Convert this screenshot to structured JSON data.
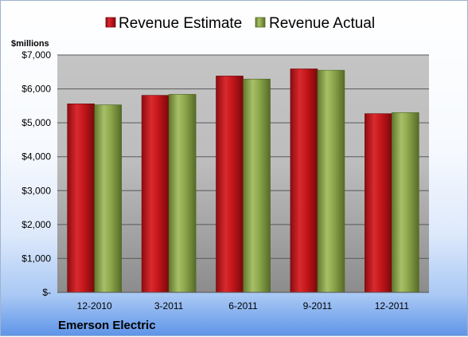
{
  "chart_data": {
    "type": "bar",
    "ylabel": "$millions",
    "categories": [
      "12-2010",
      "3-2011",
      "6-2011",
      "9-2011",
      "12-2011"
    ],
    "series": [
      {
        "name": "Revenue Estimate",
        "color": "#c0161b",
        "values": [
          5560,
          5810,
          6380,
          6590,
          5270
        ]
      },
      {
        "name": "Revenue Actual",
        "color": "#8fa94f",
        "values": [
          5530,
          5840,
          6290,
          6550,
          5300
        ]
      }
    ],
    "ylim": [
      0,
      7000
    ],
    "yticks": [
      0,
      1000,
      2000,
      3000,
      4000,
      5000,
      6000,
      7000
    ],
    "ytick_labels": [
      "$-",
      "$1,000",
      "$2,000",
      "$3,000",
      "$4,000",
      "$5,000",
      "$6,000",
      "$7,000"
    ],
    "grid": true,
    "legend_position": "top",
    "annotation": "Emerson Electric"
  }
}
